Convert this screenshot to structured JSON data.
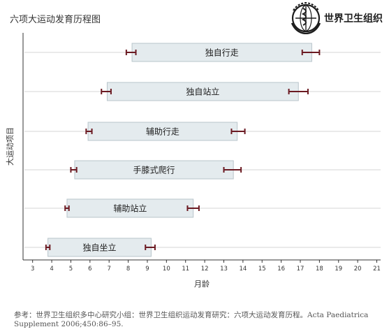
{
  "header": {
    "title": "六项大运动发育历程图",
    "logo_text": "世界卫生组织"
  },
  "chart_data": {
    "type": "range-bar",
    "title": "六项大运动发育历程图",
    "xlabel": "月龄",
    "ylabel": "大运动项目",
    "xlim": [
      2.5,
      21.2
    ],
    "xticks": [
      3,
      4,
      5,
      6,
      7,
      8,
      9,
      10,
      11,
      12,
      13,
      14,
      15,
      16,
      17,
      18,
      19,
      20,
      21
    ],
    "grid": "horizontal-lines",
    "milestones": [
      {
        "label": "独自行走",
        "start": 8.2,
        "end": 17.6,
        "err_low": [
          7.9,
          8.4
        ],
        "err_high": [
          17.1,
          18.0
        ]
      },
      {
        "label": "独自站立",
        "start": 6.9,
        "end": 16.9,
        "err_low": [
          6.6,
          7.1
        ],
        "err_high": [
          16.4,
          17.4
        ]
      },
      {
        "label": "辅助行走",
        "start": 5.9,
        "end": 13.7,
        "err_low": [
          5.8,
          6.1
        ],
        "err_high": [
          13.4,
          14.1
        ]
      },
      {
        "label": "手膝式爬行",
        "start": 5.2,
        "end": 13.5,
        "err_low": [
          5.0,
          5.3
        ],
        "err_high": [
          13.0,
          13.9
        ]
      },
      {
        "label": "辅助站立",
        "start": 4.8,
        "end": 11.4,
        "err_low": [
          4.7,
          4.9
        ],
        "err_high": [
          11.1,
          11.7
        ]
      },
      {
        "label": "独自坐立",
        "start": 3.8,
        "end": 9.2,
        "err_low": [
          3.7,
          3.9
        ],
        "err_high": [
          8.9,
          9.4
        ]
      }
    ],
    "colors": {
      "bar_fill": "#e4ebee",
      "bar_stroke": "#b9c5cb",
      "error_bar": "#6b1a22",
      "grid": "#d5d5d5",
      "axis": "#333333"
    }
  },
  "references": {
    "text": "参考：世界卫生组织多中心研究小组：世界卫生组织运动发育研究：六项大运动发育历程。Acta Paediatrica Supplement 2006;450:86–95."
  }
}
